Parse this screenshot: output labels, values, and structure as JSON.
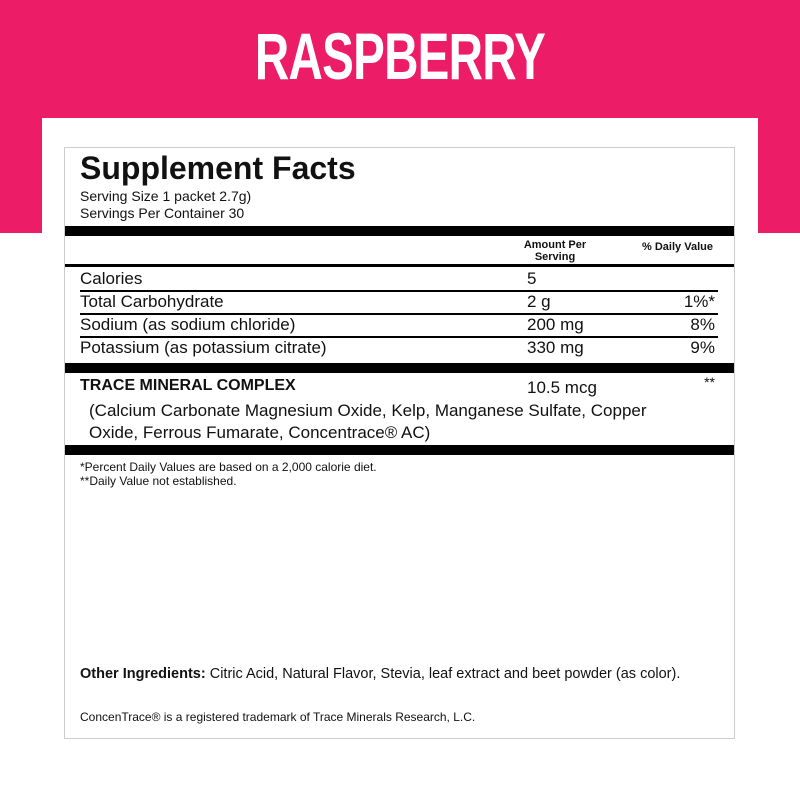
{
  "banner": {
    "title": "RASPBERRY",
    "color": "#ED1C67"
  },
  "facts": {
    "title": "Supplement Facts",
    "serving_size": "Serving Size 1 packet 2.7g)",
    "servings_per_container": "Servings Per Container 30",
    "col_amount": "Amount Per Serving",
    "col_dv": "% Daily Value",
    "rows": [
      {
        "name": "Calories",
        "amount": "5",
        "dv": ""
      },
      {
        "name": "Total Carbohydrate",
        "amount": "2 g",
        "dv": "1%*"
      },
      {
        "name": "Sodium (as sodium chloride)",
        "amount": "200 mg",
        "dv": "8%"
      },
      {
        "name": "Potassium (as potassium citrate)",
        "amount": "330 mg",
        "dv": "9%"
      }
    ],
    "complex": {
      "name": "TRACE MINERAL COMPLEX",
      "amount": "10.5 mcg",
      "dv": "**",
      "line1": "(Calcium Carbonate Magnesium Oxide, Kelp, Manganese Sulfate, Copper",
      "line2": "Oxide, Ferrous Fumarate, Concentrace® AC)"
    },
    "footnote1": "*Percent Daily Values are based on a 2,000 calorie diet.",
    "footnote2": "**Daily Value not established.",
    "other_label": "Other Ingredients:",
    "other_text": " Citric Acid, Natural Flavor, Stevia, leaf extract and beet powder (as color).",
    "trademark": "ConcenTrace® is a registered trademark of Trace Minerals Research, L.C."
  }
}
